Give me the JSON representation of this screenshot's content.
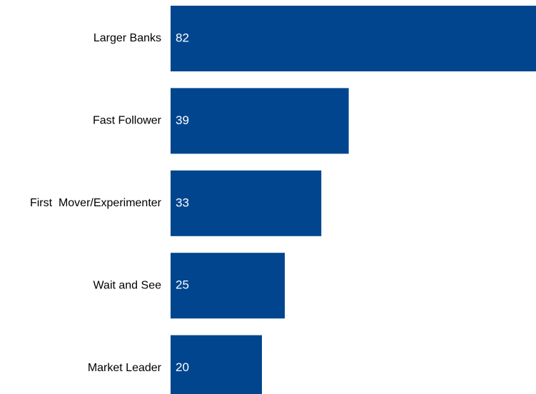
{
  "chart_data": {
    "type": "bar",
    "orientation": "horizontal",
    "categories": [
      "Larger Banks",
      "Fast Follower",
      "First  Mover/Experimenter",
      "Wait and See",
      "Market Leader"
    ],
    "values": [
      82,
      39,
      33,
      25,
      20
    ],
    "title": "",
    "xlabel": "",
    "ylabel": "",
    "xlim": [
      0,
      80
    ],
    "grid": false,
    "legend": "none",
    "data_labels": "inside-start",
    "colors": {
      "bar": "#00458E",
      "value_label": "#FFFFFF",
      "category_label": "#000000"
    }
  }
}
